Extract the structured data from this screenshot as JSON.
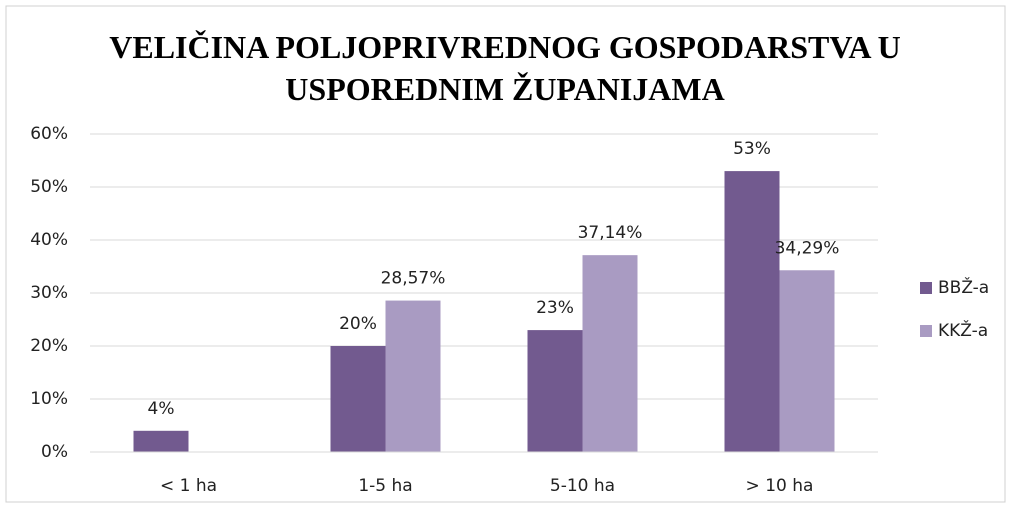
{
  "chart_data": {
    "type": "bar",
    "title": "VELIČINA POLJOPRIVREDNOG GOSPODARSTVA U USPOREDNIM ŽUPANIJAMA",
    "categories": [
      "< 1 ha",
      "1-5 ha",
      "5-10 ha",
      ">  10 ha"
    ],
    "series": [
      {
        "name": "BBŽ-a",
        "color": "#725a8f",
        "values": [
          4,
          20,
          23,
          53
        ],
        "value_labels": [
          "4%",
          "20%",
          "23%",
          "53%"
        ]
      },
      {
        "name": "KKŽ-a",
        "color": "#a99bc2",
        "values": [
          null,
          28.57,
          37.14,
          34.29
        ],
        "value_labels": [
          null,
          "28,57%",
          "37,14%",
          "34,29%"
        ]
      }
    ],
    "ylim": [
      0,
      60
    ],
    "yticks": [
      {
        "value": 0,
        "label": "0%"
      },
      {
        "value": 10,
        "label": "10%"
      },
      {
        "value": 20,
        "label": "20%"
      },
      {
        "value": 30,
        "label": "30%"
      },
      {
        "value": 40,
        "label": "40%"
      },
      {
        "value": 50,
        "label": "50%"
      },
      {
        "value": 60,
        "label": "60%"
      }
    ],
    "grid": true,
    "legend": "right"
  }
}
